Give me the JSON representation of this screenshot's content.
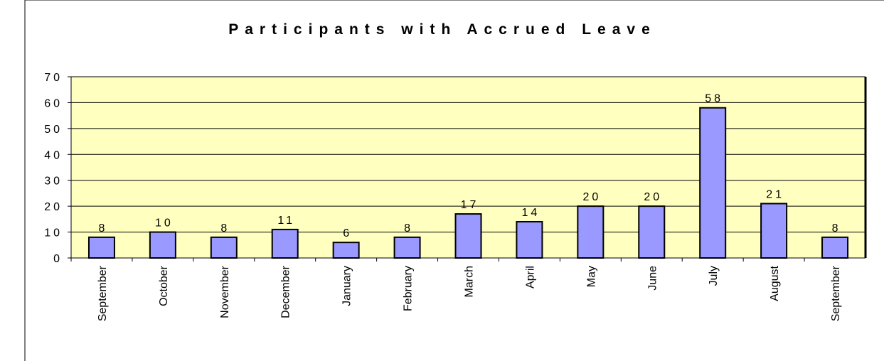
{
  "chart_data": {
    "type": "bar",
    "title": "Participants with Accrued Leave",
    "categories": [
      "September",
      "October",
      "November",
      "December",
      "January",
      "February",
      "March",
      "April",
      "May",
      "June",
      "July",
      "August",
      "September"
    ],
    "values": [
      8,
      10,
      8,
      11,
      6,
      8,
      17,
      14,
      20,
      20,
      58,
      21,
      8
    ],
    "color": "#9999ff",
    "background": "#ffffc0",
    "ylim": [
      0,
      70
    ],
    "yticks": [
      0,
      10,
      20,
      30,
      40,
      50,
      60,
      70
    ],
    "grid": true
  }
}
